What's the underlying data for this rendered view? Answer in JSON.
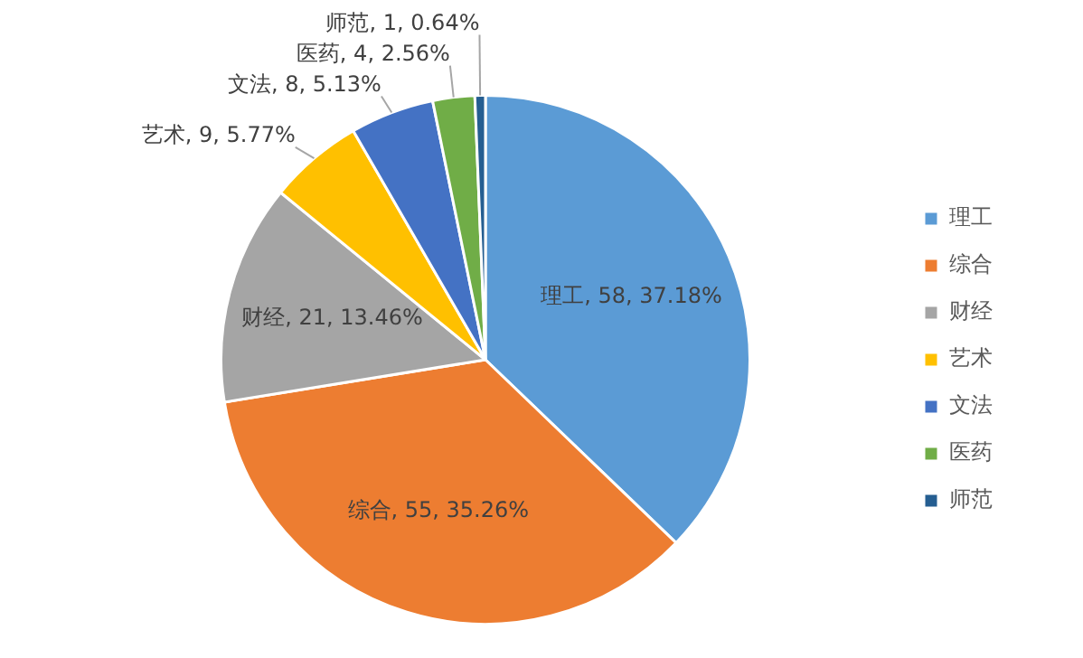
{
  "chart_data": {
    "type": "pie",
    "categories": [
      "理工",
      "综合",
      "财经",
      "艺术",
      "文法",
      "医药",
      "师范"
    ],
    "values": [
      58,
      55,
      21,
      9,
      8,
      4,
      1
    ],
    "colors": [
      "#5b9bd5",
      "#ed7d31",
      "#a5a5a5",
      "#ffc000",
      "#4472c4",
      "#70ad47",
      "#255e91"
    ],
    "value_labels": [
      "理工, 58, 37.18%",
      "综合, 55, 35.26%",
      "财经, 21, 13.46%",
      "艺术, 9, 5.77%",
      "文法, 8, 5.13%",
      "医药, 4, 2.56%",
      "师范, 1, 0.64%"
    ],
    "legend": "right"
  }
}
